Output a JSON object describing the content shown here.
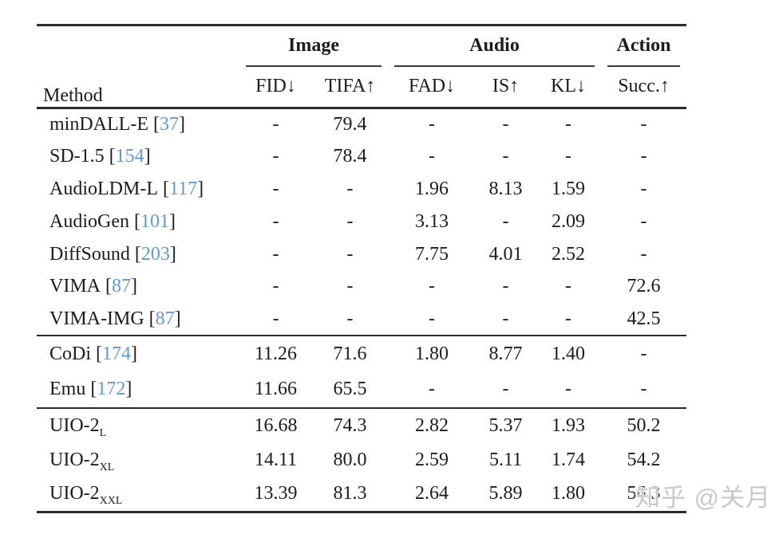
{
  "table": {
    "method_header": "Method",
    "cite_open": "[",
    "cite_close": "]",
    "groups": [
      {
        "label": "Image",
        "span": 2
      },
      {
        "label": "Audio",
        "span": 3
      },
      {
        "label": "Action",
        "span": 1
      }
    ],
    "col_headers": [
      "FID↓",
      "TIFA↑",
      "FAD↓",
      "IS↑",
      "KL↓",
      "Succ.↑"
    ],
    "sections": [
      {
        "rows": [
          {
            "name": "minDALL-E",
            "cite": "37",
            "values": [
              "-",
              "79.4",
              "-",
              "-",
              "-",
              "-"
            ]
          },
          {
            "name": "SD-1.5",
            "cite": "154",
            "values": [
              "-",
              "78.4",
              "-",
              "-",
              "-",
              "-"
            ]
          },
          {
            "name": "AudioLDM-L",
            "cite": "117",
            "values": [
              "-",
              "-",
              "1.96",
              "8.13",
              "1.59",
              "-"
            ]
          },
          {
            "name": "AudioGen",
            "cite": "101",
            "values": [
              "-",
              "-",
              "3.13",
              "-",
              "2.09",
              "-"
            ]
          },
          {
            "name": "DiffSound",
            "cite": "203",
            "values": [
              "-",
              "-",
              "7.75",
              "4.01",
              "2.52",
              "-"
            ]
          },
          {
            "name": "VIMA",
            "cite": "87",
            "values": [
              "-",
              "-",
              "-",
              "-",
              "-",
              "72.6"
            ]
          },
          {
            "name": "VIMA-IMG",
            "cite": "87",
            "values": [
              "-",
              "-",
              "-",
              "-",
              "-",
              "42.5"
            ]
          }
        ]
      },
      {
        "rows": [
          {
            "name": "CoDi",
            "cite": "174",
            "values": [
              "11.26",
              "71.6",
              "1.80",
              "8.77",
              "1.40",
              "-"
            ]
          },
          {
            "name": "Emu",
            "cite": "172",
            "values": [
              "11.66",
              "65.5",
              "-",
              "-",
              "-",
              "-"
            ]
          }
        ]
      },
      {
        "rows": [
          {
            "name": "UIO-2",
            "sub": "L",
            "values": [
              "16.68",
              "74.3",
              "2.82",
              "5.37",
              "1.93",
              "50.2"
            ]
          },
          {
            "name": "UIO-2",
            "sub": "XL",
            "values": [
              "14.11",
              "80.0",
              "2.59",
              "5.11",
              "1.74",
              "54.2"
            ]
          },
          {
            "name": "UIO-2",
            "sub": "XXL",
            "values": [
              "13.39",
              "81.3",
              "2.64",
              "5.89",
              "1.80",
              "56.3"
            ]
          }
        ]
      }
    ]
  },
  "watermark": {
    "text": "知乎 @关月"
  },
  "colors": {
    "citation_blue": "#6398d1",
    "watermark_gray": "#c9c9c9",
    "rule_dark": "#2b2b2b"
  }
}
